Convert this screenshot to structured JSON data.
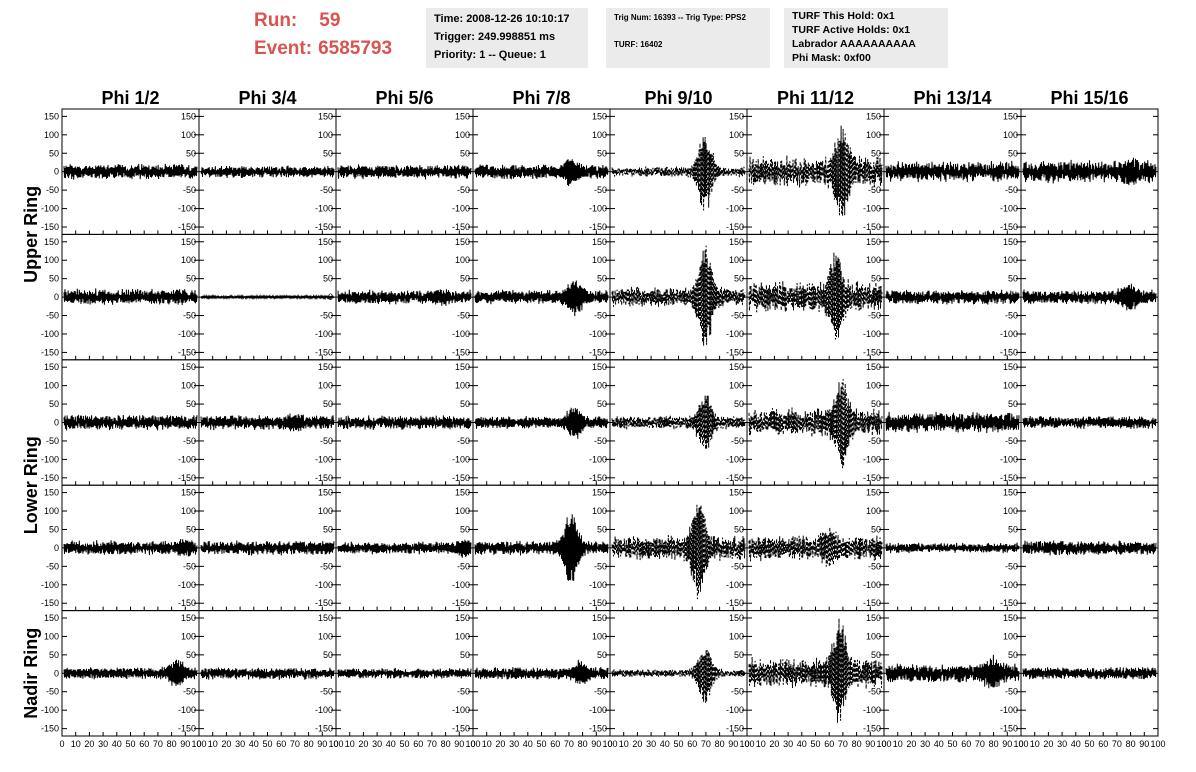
{
  "header": {
    "run_label": "Run:",
    "run_value": "59",
    "event_label": "Event:",
    "event_value": "6585793",
    "time": "Time: 2008-12-26 10:10:17",
    "trigger": "Trigger: 249.998851 ms",
    "priority": "Priority: 1 -- Queue: 1",
    "trig_num": "Trig Num: 16393 -- Trig Type: PPS2",
    "turf": "TURF: 16402",
    "turf_hold": "TURF This Hold: 0x1",
    "turf_active": "TURF Active Holds: 0x1",
    "labrador": "Labrador AAAAAAAAAA",
    "phi_mask": "Phi Mask: 0xf00"
  },
  "colors": {
    "accent": "#d9534f",
    "panel_bg": "#ebebeb",
    "trace": "#000000"
  },
  "chart_data": {
    "type": "line",
    "columns": [
      "Phi 1/2",
      "Phi 3/4",
      "Phi 5/6",
      "Phi 7/8",
      "Phi 9/10",
      "Phi 11/12",
      "Phi 13/14",
      "Phi 15/16"
    ],
    "rows": [
      "Upper Ring",
      "Upper Ring",
      "Lower Ring",
      "Lower Ring",
      "Nadir Ring"
    ],
    "row_labels": [
      "Upper Ring",
      "Lower Ring",
      "Nadir Ring"
    ],
    "xlim": [
      0,
      100
    ],
    "ylim": [
      -170,
      170
    ],
    "x_ticks": [
      "0",
      "10",
      "20",
      "30",
      "40",
      "50",
      "60",
      "70",
      "80",
      "90",
      "100"
    ],
    "y_ticks": [
      "150",
      "100",
      "50",
      "0",
      "-50",
      "-100",
      "-150"
    ],
    "grid": false,
    "waveforms": [
      [
        {
          "amp": 15,
          "burst": 0,
          "center": 50,
          "style": "solid"
        },
        {
          "amp": 12,
          "burst": 0,
          "center": 50,
          "style": "solid"
        },
        {
          "amp": 14,
          "burst": 0,
          "center": 50,
          "style": "solid"
        },
        {
          "amp": 14,
          "burst": 25,
          "center": 72,
          "style": "solid"
        },
        {
          "amp": 10,
          "burst": 110,
          "center": 70,
          "style": "dashed"
        },
        {
          "amp": 30,
          "burst": 110,
          "center": 70,
          "style": "dashed"
        },
        {
          "amp": 20,
          "burst": 0,
          "center": 50,
          "style": "solid"
        },
        {
          "amp": 22,
          "burst": 10,
          "center": 80,
          "style": "solid"
        }
      ],
      [
        {
          "amp": 16,
          "burst": 0,
          "center": 50,
          "style": "solid"
        },
        {
          "amp": 3,
          "burst": 0,
          "center": 50,
          "style": "solid"
        },
        {
          "amp": 14,
          "burst": 10,
          "center": 78,
          "style": "solid"
        },
        {
          "amp": 14,
          "burst": 40,
          "center": 75,
          "style": "solid"
        },
        {
          "amp": 20,
          "burst": 130,
          "center": 70,
          "style": "dashed"
        },
        {
          "amp": 30,
          "burst": 100,
          "center": 65,
          "style": "dashed"
        },
        {
          "amp": 14,
          "burst": 0,
          "center": 50,
          "style": "solid"
        },
        {
          "amp": 14,
          "burst": 25,
          "center": 80,
          "style": "solid"
        }
      ],
      [
        {
          "amp": 15,
          "burst": 0,
          "center": 50,
          "style": "solid"
        },
        {
          "amp": 14,
          "burst": 10,
          "center": 70,
          "style": "solid"
        },
        {
          "amp": 14,
          "burst": 0,
          "center": 50,
          "style": "solid"
        },
        {
          "amp": 12,
          "burst": 35,
          "center": 75,
          "style": "solid"
        },
        {
          "amp": 14,
          "burst": 70,
          "center": 70,
          "style": "dashed"
        },
        {
          "amp": 28,
          "burst": 110,
          "center": 70,
          "style": "dashed"
        },
        {
          "amp": 20,
          "burst": 0,
          "center": 50,
          "style": "solid"
        },
        {
          "amp": 12,
          "burst": 0,
          "center": 50,
          "style": "solid"
        }
      ],
      [
        {
          "amp": 14,
          "burst": 10,
          "center": 90,
          "style": "solid"
        },
        {
          "amp": 14,
          "burst": 0,
          "center": 50,
          "style": "solid"
        },
        {
          "amp": 12,
          "burst": 15,
          "center": 95,
          "style": "solid"
        },
        {
          "amp": 14,
          "burst": 100,
          "center": 72,
          "style": "solid"
        },
        {
          "amp": 24,
          "burst": 120,
          "center": 65,
          "style": "dashed"
        },
        {
          "amp": 25,
          "burst": 30,
          "center": 60,
          "style": "dashed"
        },
        {
          "amp": 10,
          "burst": 0,
          "center": 50,
          "style": "solid"
        },
        {
          "amp": 14,
          "burst": 0,
          "center": 50,
          "style": "solid"
        }
      ],
      [
        {
          "amp": 12,
          "burst": 30,
          "center": 85,
          "style": "solid"
        },
        {
          "amp": 12,
          "burst": 0,
          "center": 50,
          "style": "solid"
        },
        {
          "amp": 10,
          "burst": 0,
          "center": 50,
          "style": "solid"
        },
        {
          "amp": 12,
          "burst": 25,
          "center": 80,
          "style": "solid"
        },
        {
          "amp": 8,
          "burst": 80,
          "center": 70,
          "style": "dashed"
        },
        {
          "amp": 30,
          "burst": 120,
          "center": 68,
          "style": "dashed"
        },
        {
          "amp": 18,
          "burst": 30,
          "center": 80,
          "style": "solid"
        },
        {
          "amp": 12,
          "burst": 0,
          "center": 50,
          "style": "solid"
        }
      ]
    ]
  }
}
